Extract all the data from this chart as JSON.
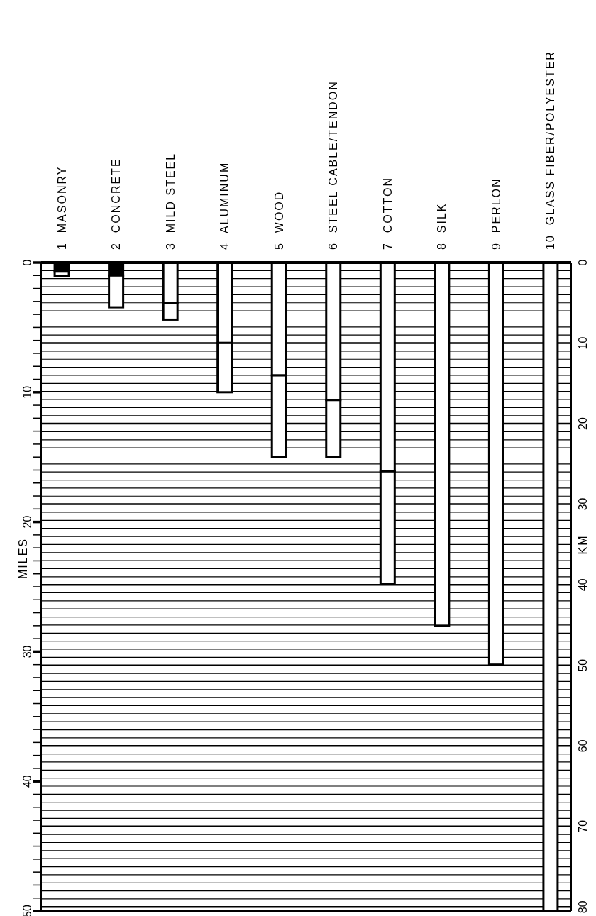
{
  "chart_data": {
    "type": "bar",
    "stacked": true,
    "grid": true,
    "ylabel": "MILES",
    "y2label": "KM",
    "categories": [
      "1  MASONRY",
      "2  CONCRETE",
      "3  MILD STEEL",
      "4  ALUMINUM",
      "5  WOOD",
      "6  STEEL CABLE/TENDON",
      "7  COTTON",
      "8  SILK",
      "9  PERLON",
      "10  GLASS FIBER/POLYESTER"
    ],
    "series": [
      {
        "colors": [
          "#000000",
          "#000000",
          "#ffffff",
          "#ffffff",
          "#ffffff",
          "#ffffff",
          "#ffffff",
          "#ffffff",
          "#ffffff",
          "#ffffff"
        ],
        "values": [
          0.7,
          1.0,
          3.1,
          6.2,
          8.7,
          10.6,
          16.1,
          28,
          31,
          50
        ]
      },
      {
        "color": "#ffffff",
        "values": [
          0.35,
          2.45,
          1.3,
          3.8,
          6.3,
          4.4,
          8.7,
          null,
          null,
          null
        ]
      }
    ],
    "ylim": [
      50,
      0
    ],
    "yticks": [
      0,
      {
        "value": 1,
        "label": null
      },
      {
        "value": 2,
        "label": null
      },
      {
        "value": 3,
        "label": null
      },
      {
        "value": 4,
        "label": null
      },
      {
        "value": 5,
        "label": null
      },
      {
        "value": 6,
        "label": null
      },
      {
        "value": 7,
        "label": null
      },
      {
        "value": 8,
        "label": null
      },
      {
        "value": 9,
        "label": null
      },
      10,
      {
        "value": 11,
        "label": null
      },
      {
        "value": 12,
        "label": null
      },
      {
        "value": 13,
        "label": null
      },
      {
        "value": 14,
        "label": null
      },
      {
        "value": 15,
        "label": null
      },
      {
        "value": 16,
        "label": null
      },
      {
        "value": 17,
        "label": null
      },
      {
        "value": 18,
        "label": null
      },
      {
        "value": 19,
        "label": null
      },
      20,
      {
        "value": 21,
        "label": null
      },
      {
        "value": 22,
        "label": null
      },
      {
        "value": 23,
        "label": null
      },
      {
        "value": 24,
        "label": null
      },
      {
        "value": 25,
        "label": null
      },
      {
        "value": 26,
        "label": null
      },
      {
        "value": 27,
        "label": null
      },
      {
        "value": 28,
        "label": null
      },
      {
        "value": 29,
        "label": null
      },
      30,
      {
        "value": 31,
        "label": null
      },
      {
        "value": 32,
        "label": null
      },
      {
        "value": 33,
        "label": null
      },
      {
        "value": 34,
        "label": null
      },
      {
        "value": 35,
        "label": null
      },
      {
        "value": 36,
        "label": null
      },
      {
        "value": 37,
        "label": null
      },
      {
        "value": 38,
        "label": null
      },
      {
        "value": 39,
        "label": null
      },
      40,
      {
        "value": 41,
        "label": null
      },
      {
        "value": 42,
        "label": null
      },
      {
        "value": 43,
        "label": null
      },
      {
        "value": 44,
        "label": null
      },
      {
        "value": 45,
        "label": null
      },
      {
        "value": 46,
        "label": null
      },
      {
        "value": 47,
        "label": null
      },
      {
        "value": 48,
        "label": null
      },
      {
        "value": 49,
        "label": null
      },
      50
    ],
    "y2lim": [
      80.5,
      0
    ],
    "y2ticks": [
      0,
      {
        "value": 1,
        "label": null
      },
      {
        "value": 2,
        "label": null
      },
      {
        "value": 3,
        "label": null
      },
      {
        "value": 4,
        "label": null
      },
      {
        "value": 5,
        "label": null
      },
      {
        "value": 6,
        "label": null
      },
      {
        "value": 7,
        "label": null
      },
      {
        "value": 8,
        "label": null
      },
      {
        "value": 9,
        "label": null
      },
      10,
      {
        "value": 11,
        "label": null
      },
      {
        "value": 12,
        "label": null
      },
      {
        "value": 13,
        "label": null
      },
      {
        "value": 14,
        "label": null
      },
      {
        "value": 15,
        "label": null
      },
      {
        "value": 16,
        "label": null
      },
      {
        "value": 17,
        "label": null
      },
      {
        "value": 18,
        "label": null
      },
      {
        "value": 19,
        "label": null
      },
      20,
      {
        "value": 21,
        "label": null
      },
      {
        "value": 22,
        "label": null
      },
      {
        "value": 23,
        "label": null
      },
      {
        "value": 24,
        "label": null
      },
      {
        "value": 25,
        "label": null
      },
      {
        "value": 26,
        "label": null
      },
      {
        "value": 27,
        "label": null
      },
      {
        "value": 28,
        "label": null
      },
      {
        "value": 29,
        "label": null
      },
      30,
      {
        "value": 31,
        "label": null
      },
      {
        "value": 32,
        "label": null
      },
      {
        "value": 33,
        "label": null
      },
      {
        "value": 34,
        "label": null
      },
      {
        "value": 35,
        "label": null
      },
      {
        "value": 36,
        "label": null
      },
      {
        "value": 37,
        "label": null
      },
      {
        "value": 38,
        "label": null
      },
      {
        "value": 39,
        "label": null
      },
      40,
      {
        "value": 41,
        "label": null
      },
      {
        "value": 42,
        "label": null
      },
      {
        "value": 43,
        "label": null
      },
      {
        "value": 44,
        "label": null
      },
      {
        "value": 45,
        "label": null
      },
      {
        "value": 46,
        "label": null
      },
      {
        "value": 47,
        "label": null
      },
      {
        "value": 48,
        "label": null
      },
      {
        "value": 49,
        "label": null
      },
      50,
      {
        "value": 51,
        "label": null
      },
      {
        "value": 52,
        "label": null
      },
      {
        "value": 53,
        "label": null
      },
      {
        "value": 54,
        "label": null
      },
      {
        "value": 55,
        "label": null
      },
      {
        "value": 56,
        "label": null
      },
      {
        "value": 57,
        "label": null
      },
      {
        "value": 58,
        "label": null
      },
      {
        "value": 59,
        "label": null
      },
      60,
      {
        "value": 61,
        "label": null
      },
      {
        "value": 62,
        "label": null
      },
      {
        "value": 63,
        "label": null
      },
      {
        "value": 64,
        "label": null
      },
      {
        "value": 65,
        "label": null
      },
      {
        "value": 66,
        "label": null
      },
      {
        "value": 67,
        "label": null
      },
      {
        "value": 68,
        "label": null
      },
      {
        "value": 69,
        "label": null
      },
      70,
      {
        "value": 71,
        "label": null
      },
      {
        "value": 72,
        "label": null
      },
      {
        "value": 73,
        "label": null
      },
      {
        "value": 74,
        "label": null
      },
      {
        "value": 75,
        "label": null
      },
      {
        "value": 76,
        "label": null
      },
      {
        "value": 77,
        "label": null
      },
      {
        "value": 78,
        "label": null
      },
      {
        "value": 79,
        "label": null
      },
      80
    ]
  }
}
